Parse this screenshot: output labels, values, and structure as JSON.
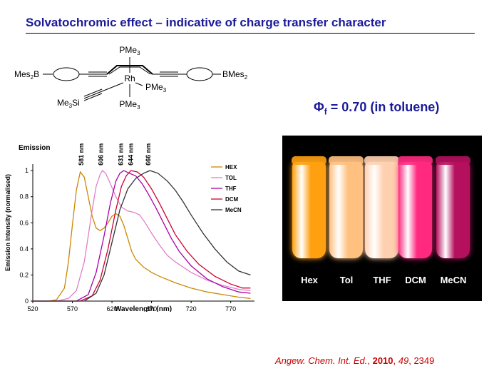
{
  "slide": {
    "title": "Solvatochromic effect – indicative of charge transfer character"
  },
  "structure": {
    "pme3_top": "PMe",
    "pme3_top_sub": "3",
    "rh": "Rh",
    "pme3_right": "PMe",
    "pme3_right_sub": "3",
    "pme3_bottom": "PMe",
    "pme3_bottom_sub": "3",
    "left_group_a": "Mes",
    "left_group_sub": "2",
    "left_group_b": "B",
    "right_group_a": "BMes",
    "right_group_sub": "2",
    "silyl_a": "Me",
    "silyl_sub": "3",
    "silyl_b": "Si"
  },
  "quantum_yield": {
    "symbol": "Φ",
    "subscript": "f",
    "text": " = 0.70 (in toluene)"
  },
  "photo": {
    "vials": [
      {
        "label": "Hex",
        "color": "#ffa010"
      },
      {
        "label": "Tol",
        "color": "#ffc080"
      },
      {
        "label": "THF",
        "color": "#ffd0b0"
      },
      {
        "label": "DCM",
        "color": "#ff2a80"
      },
      {
        "label": "MeCN",
        "color": "#b5105e"
      }
    ]
  },
  "citation": {
    "journal": "Angew. Chem. Int. Ed.",
    "sep1": ", ",
    "year": "2010",
    "sep2": ", ",
    "volume": "49",
    "sep3": ", ",
    "page": "2349"
  },
  "chart_data": {
    "type": "line",
    "title": "Emission",
    "xlabel": "Wavelength (nm)",
    "ylabel": "Emission Intensity (normalised)",
    "xlim": [
      520,
      800
    ],
    "ylim": [
      0,
      1.05
    ],
    "xticks": [
      520,
      570,
      620,
      670,
      720,
      770
    ],
    "yticks": [
      0,
      0.2,
      0.4,
      0.6,
      0.8,
      1
    ],
    "legend_position": "top-right",
    "grid": false,
    "series": [
      {
        "name": "HEX",
        "color": "#cc8800",
        "peak_label": "581 nm",
        "peak_x": 581,
        "points": [
          [
            520,
            0
          ],
          [
            540,
            0
          ],
          [
            550,
            0.01
          ],
          [
            560,
            0.1
          ],
          [
            565,
            0.3
          ],
          [
            570,
            0.58
          ],
          [
            575,
            0.85
          ],
          [
            580,
            0.99
          ],
          [
            585,
            0.95
          ],
          [
            590,
            0.8
          ],
          [
            595,
            0.65
          ],
          [
            600,
            0.56
          ],
          [
            605,
            0.54
          ],
          [
            610,
            0.56
          ],
          [
            615,
            0.6
          ],
          [
            620,
            0.65
          ],
          [
            625,
            0.67
          ],
          [
            630,
            0.65
          ],
          [
            635,
            0.58
          ],
          [
            640,
            0.48
          ],
          [
            645,
            0.38
          ],
          [
            650,
            0.32
          ],
          [
            660,
            0.26
          ],
          [
            670,
            0.22
          ],
          [
            680,
            0.19
          ],
          [
            700,
            0.14
          ],
          [
            720,
            0.1
          ],
          [
            740,
            0.07
          ],
          [
            760,
            0.05
          ],
          [
            780,
            0.03
          ],
          [
            795,
            0.02
          ]
        ]
      },
      {
        "name": "TOL",
        "color": "#e080c8",
        "peak_label": "606 nm",
        "peak_x": 606,
        "points": [
          [
            520,
            0
          ],
          [
            550,
            0
          ],
          [
            565,
            0.02
          ],
          [
            575,
            0.08
          ],
          [
            585,
            0.3
          ],
          [
            590,
            0.5
          ],
          [
            595,
            0.7
          ],
          [
            600,
            0.88
          ],
          [
            605,
            0.97
          ],
          [
            608,
            1.0
          ],
          [
            612,
            0.98
          ],
          [
            618,
            0.9
          ],
          [
            625,
            0.8
          ],
          [
            632,
            0.72
          ],
          [
            640,
            0.69
          ],
          [
            648,
            0.68
          ],
          [
            655,
            0.66
          ],
          [
            662,
            0.6
          ],
          [
            670,
            0.52
          ],
          [
            680,
            0.43
          ],
          [
            690,
            0.35
          ],
          [
            700,
            0.3
          ],
          [
            720,
            0.22
          ],
          [
            740,
            0.16
          ],
          [
            760,
            0.12
          ],
          [
            780,
            0.09
          ],
          [
            795,
            0.08
          ]
        ]
      },
      {
        "name": "THF",
        "color": "#aa00aa",
        "peak_label": "631 nm",
        "peak_x": 631,
        "points": [
          [
            520,
            0
          ],
          [
            575,
            0
          ],
          [
            590,
            0.05
          ],
          [
            600,
            0.22
          ],
          [
            610,
            0.5
          ],
          [
            618,
            0.75
          ],
          [
            625,
            0.92
          ],
          [
            630,
            0.98
          ],
          [
            635,
            1.0
          ],
          [
            642,
            0.98
          ],
          [
            650,
            0.96
          ],
          [
            658,
            0.9
          ],
          [
            665,
            0.83
          ],
          [
            675,
            0.72
          ],
          [
            685,
            0.6
          ],
          [
            695,
            0.48
          ],
          [
            705,
            0.38
          ],
          [
            720,
            0.27
          ],
          [
            740,
            0.17
          ],
          [
            760,
            0.11
          ],
          [
            780,
            0.07
          ],
          [
            795,
            0.06
          ]
        ]
      },
      {
        "name": "DCM",
        "color": "#cc0033",
        "peak_label": "644 nm",
        "peak_x": 644,
        "points": [
          [
            520,
            0
          ],
          [
            580,
            0
          ],
          [
            595,
            0.04
          ],
          [
            605,
            0.16
          ],
          [
            615,
            0.4
          ],
          [
            625,
            0.7
          ],
          [
            632,
            0.88
          ],
          [
            638,
            0.96
          ],
          [
            644,
            1.0
          ],
          [
            652,
            0.99
          ],
          [
            660,
            0.95
          ],
          [
            670,
            0.86
          ],
          [
            680,
            0.75
          ],
          [
            690,
            0.63
          ],
          [
            700,
            0.51
          ],
          [
            715,
            0.38
          ],
          [
            730,
            0.28
          ],
          [
            750,
            0.19
          ],
          [
            770,
            0.13
          ],
          [
            785,
            0.1
          ],
          [
            795,
            0.1
          ]
        ]
      },
      {
        "name": "MeCN",
        "color": "#333333",
        "peak_label": "666 nm",
        "peak_x": 666,
        "points": [
          [
            520,
            0
          ],
          [
            585,
            0
          ],
          [
            600,
            0.06
          ],
          [
            610,
            0.2
          ],
          [
            620,
            0.45
          ],
          [
            630,
            0.7
          ],
          [
            640,
            0.86
          ],
          [
            650,
            0.94
          ],
          [
            660,
            0.98
          ],
          [
            668,
            1.0
          ],
          [
            678,
            0.98
          ],
          [
            690,
            0.92
          ],
          [
            700,
            0.85
          ],
          [
            710,
            0.76
          ],
          [
            720,
            0.66
          ],
          [
            735,
            0.52
          ],
          [
            750,
            0.4
          ],
          [
            765,
            0.3
          ],
          [
            780,
            0.23
          ],
          [
            795,
            0.2
          ]
        ]
      }
    ]
  }
}
